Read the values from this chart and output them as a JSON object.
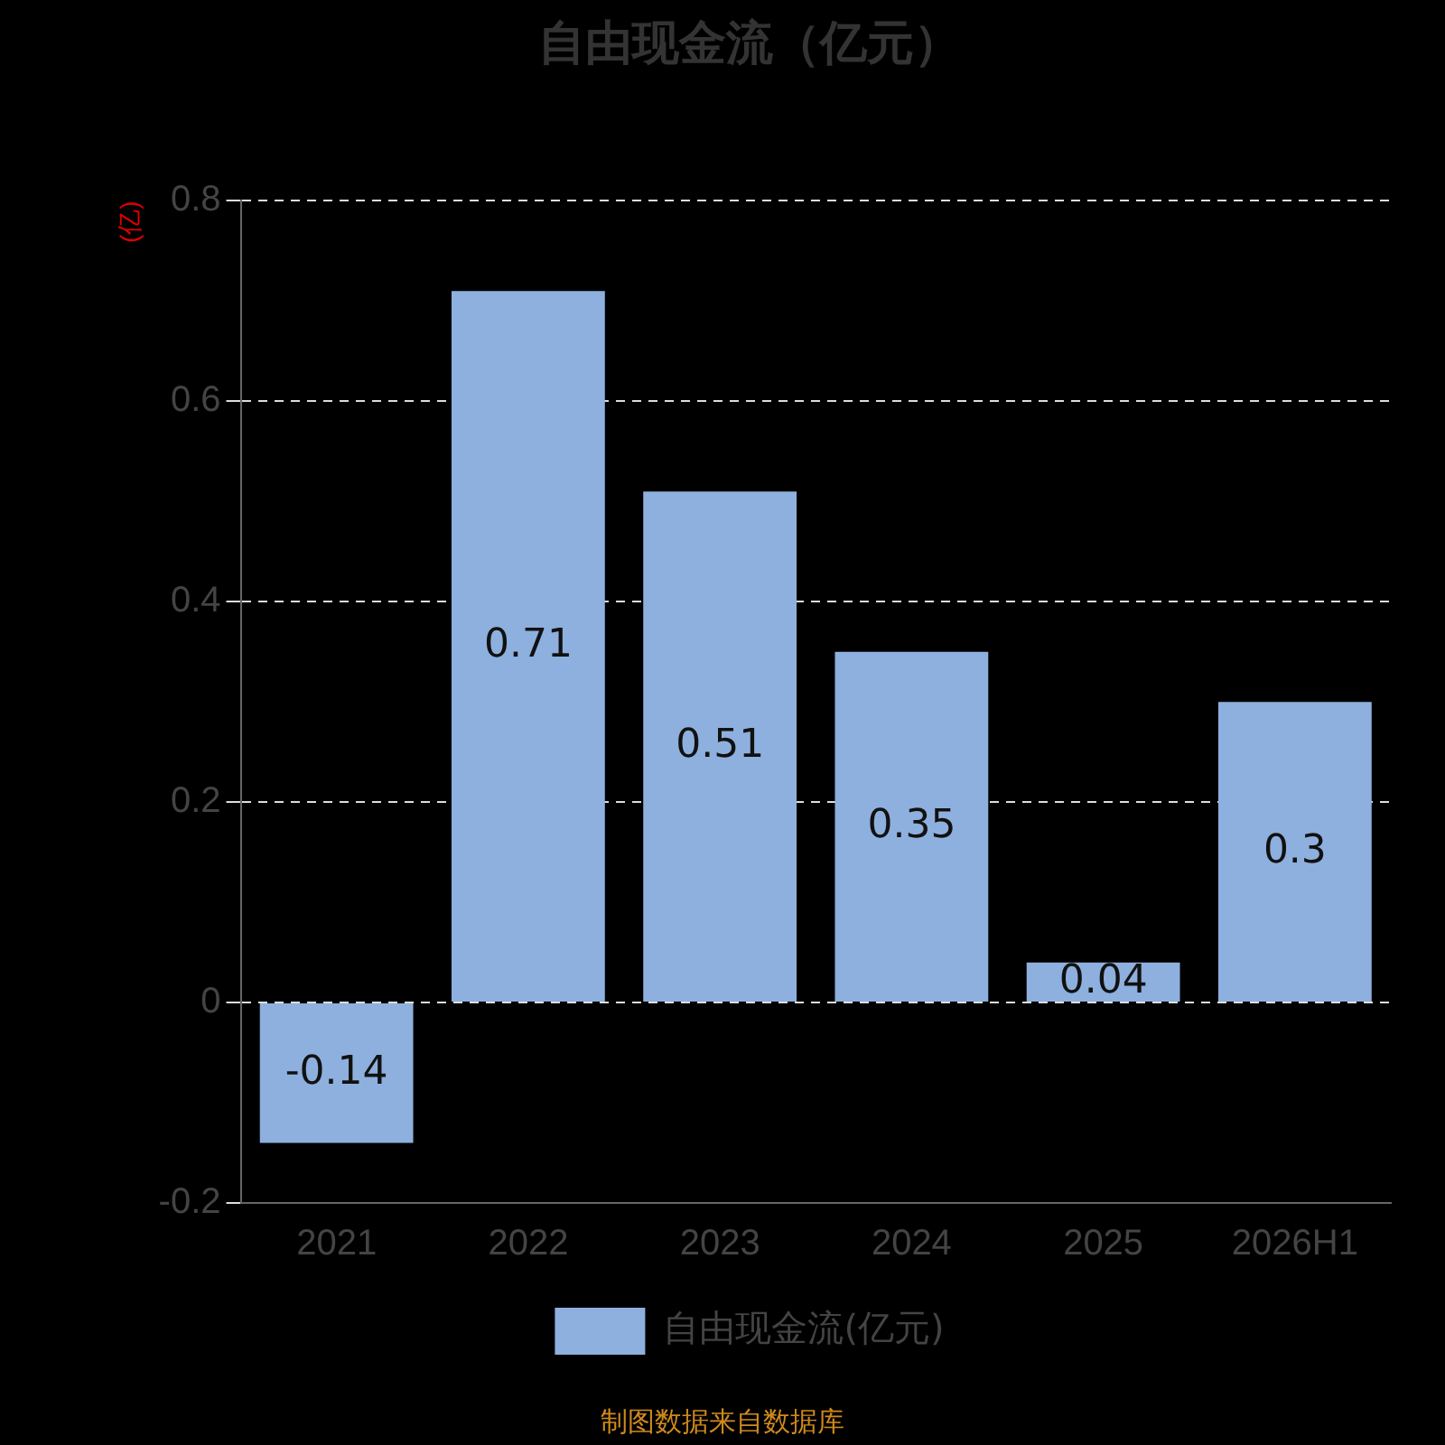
{
  "chart_data": {
    "type": "bar",
    "title": "自由现金流（亿元）",
    "ylabel": "(亿)",
    "categories": [
      "2021",
      "2022",
      "2023",
      "2024",
      "2025",
      "2026H1"
    ],
    "series": [
      {
        "name": "自由现金流(亿元)",
        "color": "#8eb0de",
        "values": [
          -0.14,
          0.71,
          0.51,
          0.35,
          0.04,
          0.3
        ]
      }
    ],
    "ylim": [
      -0.2,
      0.8
    ],
    "yticks": [
      -0.2,
      0,
      0.2,
      0.4,
      0.6,
      0.8
    ],
    "grid": "y",
    "legend": "bottom",
    "data_labels": true,
    "annotations": [
      "制图数据来自数据库"
    ]
  }
}
